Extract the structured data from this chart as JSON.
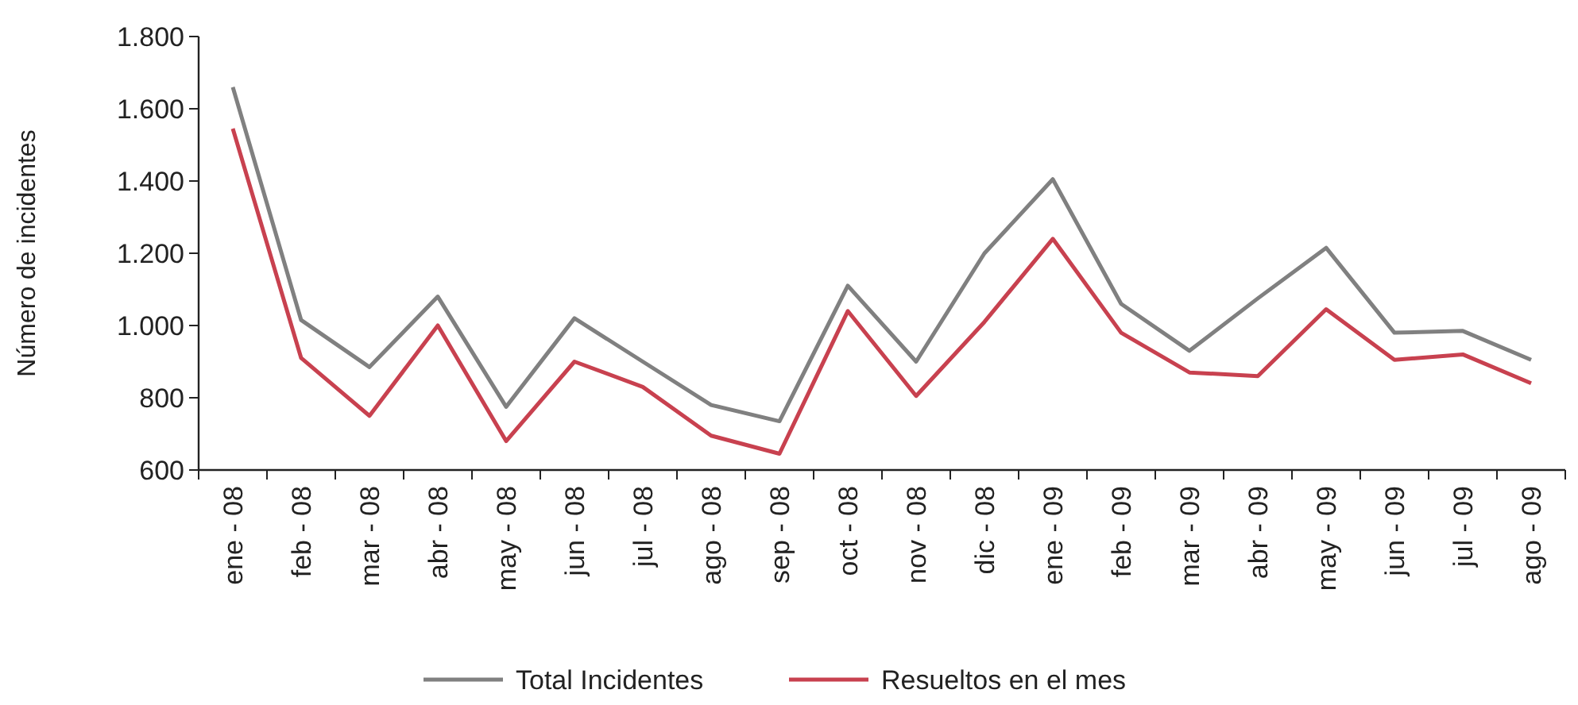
{
  "chart_data": {
    "type": "line",
    "ylabel": "Número de incidentes",
    "categories": [
      "ene - 08",
      "feb - 08",
      "mar - 08",
      "abr - 08",
      "may - 08",
      "jun - 08",
      "jul - 08",
      "ago - 08",
      "sep - 08",
      "oct - 08",
      "nov - 08",
      "dic - 08",
      "ene - 09",
      "feb - 09",
      "mar - 09",
      "abr - 09",
      "may - 09",
      "jun - 09",
      "jul - 09",
      "ago - 09"
    ],
    "series": [
      {
        "name": "Total Incidentes",
        "color": "#808080",
        "values": [
          1660,
          1015,
          885,
          1080,
          775,
          1020,
          900,
          780,
          735,
          1110,
          900,
          1200,
          1405,
          1060,
          930,
          1075,
          1215,
          980,
          985,
          905
        ]
      },
      {
        "name": "Resueltos en el mes",
        "color": "#c8414f",
        "values": [
          1545,
          910,
          750,
          1000,
          680,
          900,
          830,
          695,
          645,
          1040,
          805,
          1010,
          1240,
          980,
          870,
          860,
          1045,
          905,
          920,
          840
        ]
      }
    ],
    "ylim": [
      600,
      1800
    ],
    "yticks": [
      600,
      800,
      {
        "value": 1000,
        "label": "1.000"
      },
      {
        "value": 1200,
        "label": "1.200"
      },
      {
        "value": 1400,
        "label": "1.400"
      },
      {
        "value": 1600,
        "label": "1.600"
      },
      {
        "value": 1800,
        "label": "1.800"
      }
    ],
    "grid": false,
    "legend": "bottom",
    "marker": "none",
    "line_style": "solid"
  }
}
